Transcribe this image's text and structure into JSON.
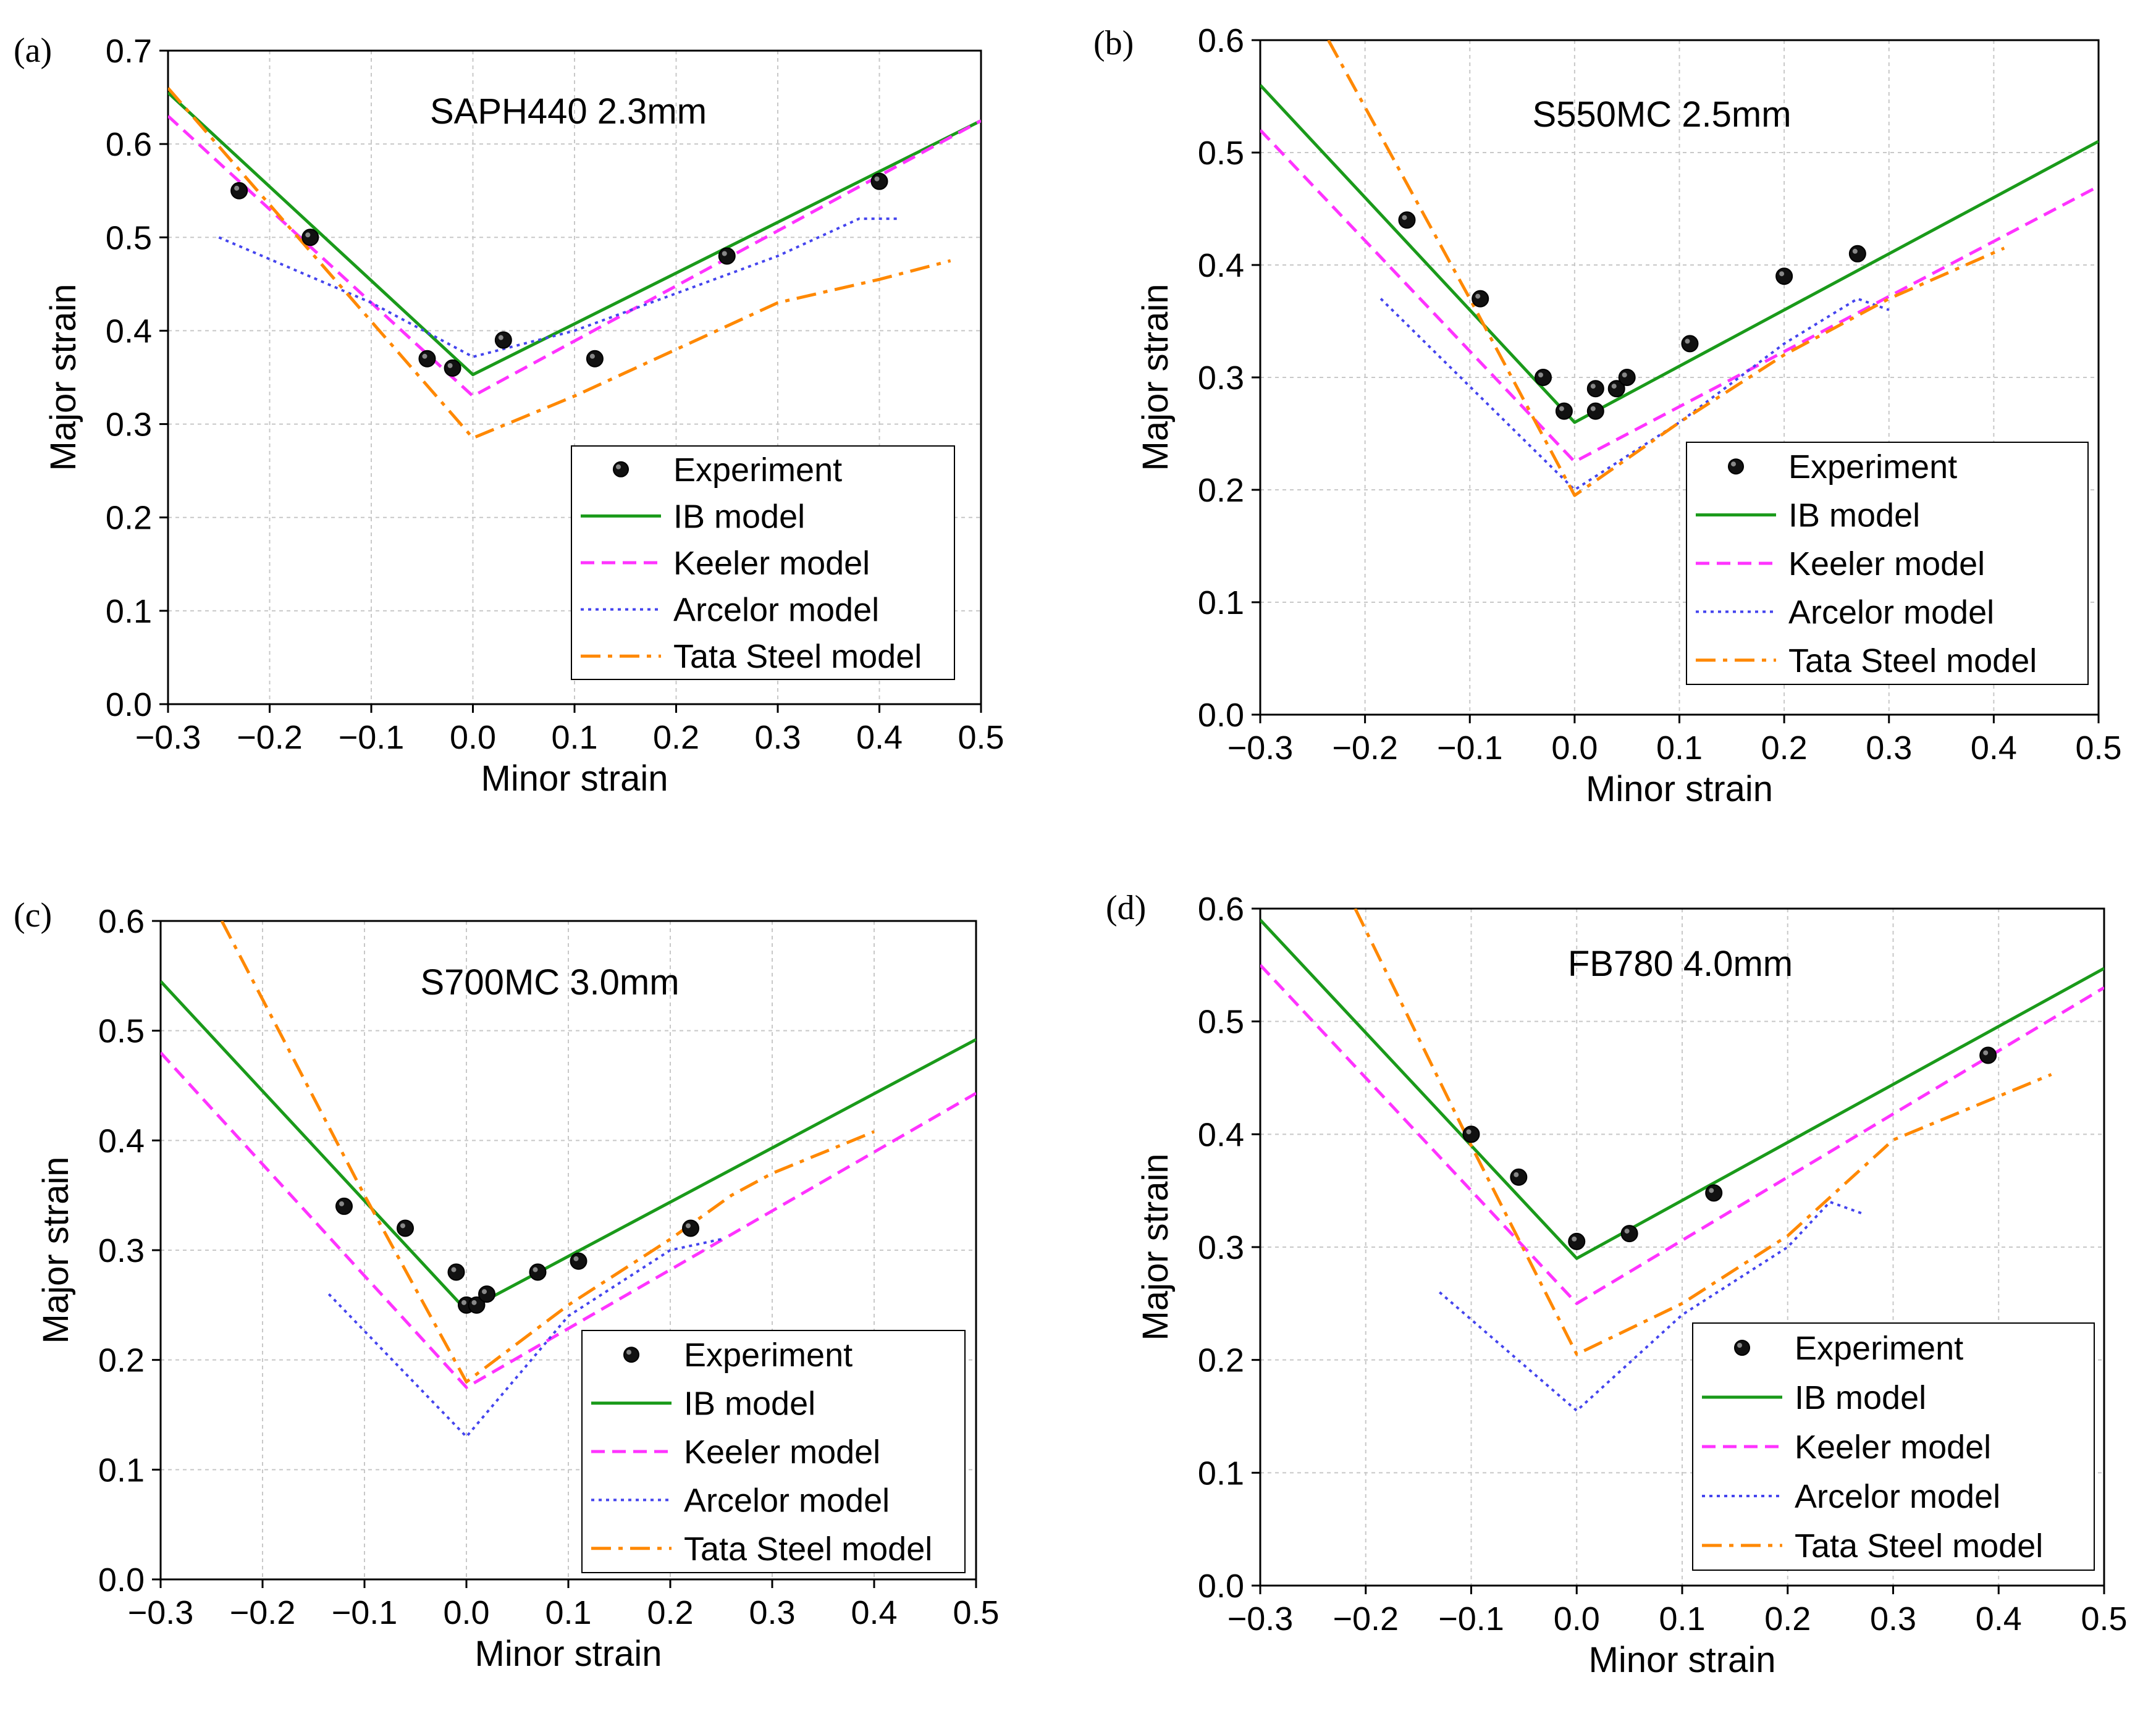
{
  "chart_data": [
    {
      "type": "line",
      "panel_label": "(a)",
      "title": "SAPH440 2.3mm",
      "xlabel": "Minor strain",
      "ylabel": "Major strain",
      "xlim": [
        -0.3,
        0.5
      ],
      "ylim": [
        0.0,
        0.7
      ],
      "xticks": [
        -0.3,
        -0.2,
        -0.1,
        0.0,
        0.1,
        0.2,
        0.3,
        0.4,
        0.5
      ],
      "xtick_labels": [
        "−0.3",
        "−0.2",
        "−0.1",
        "0.0",
        "0.1",
        "0.2",
        "0.3",
        "0.4",
        "0.5"
      ],
      "yticks": [
        0.0,
        0.1,
        0.2,
        0.3,
        0.4,
        0.5,
        0.6,
        0.7
      ],
      "ytick_labels": [
        "0.0",
        "0.1",
        "0.2",
        "0.3",
        "0.4",
        "0.5",
        "0.6",
        "0.7"
      ],
      "grid": true,
      "legend_position": "bottom-right",
      "series": [
        {
          "name": "Experiment",
          "kind": "scatter",
          "color": "#000000",
          "points": [
            [
              -0.23,
              0.55
            ],
            [
              -0.16,
              0.5
            ],
            [
              -0.045,
              0.37
            ],
            [
              -0.02,
              0.36
            ],
            [
              0.03,
              0.39
            ],
            [
              0.12,
              0.37
            ],
            [
              0.25,
              0.48
            ],
            [
              0.4,
              0.56
            ]
          ]
        },
        {
          "name": "IB model",
          "kind": "line",
          "color": "#1a9a1a",
          "dash": "solid",
          "points": [
            [
              -0.3,
              0.655
            ],
            [
              0.0,
              0.353
            ],
            [
              0.5,
              0.625
            ]
          ]
        },
        {
          "name": "Keeler model",
          "kind": "line",
          "color": "#ff33ff",
          "dash": "dashed",
          "points": [
            [
              -0.3,
              0.63
            ],
            [
              0.0,
              0.33
            ],
            [
              0.5,
              0.625
            ]
          ]
        },
        {
          "name": "Arcelor model",
          "kind": "line",
          "color": "#4444ee",
          "dash": "dotted",
          "points": [
            [
              -0.25,
              0.5
            ],
            [
              -0.1,
              0.43
            ],
            [
              0.0,
              0.372
            ],
            [
              0.1,
              0.4
            ],
            [
              0.2,
              0.44
            ],
            [
              0.3,
              0.48
            ],
            [
              0.38,
              0.52
            ],
            [
              0.42,
              0.52
            ]
          ]
        },
        {
          "name": "Tata Steel model",
          "kind": "line",
          "color": "#ff8800",
          "dash": "dashdot",
          "points": [
            [
              -0.3,
              0.66
            ],
            [
              0.0,
              0.285
            ],
            [
              0.1,
              0.33
            ],
            [
              0.2,
              0.38
            ],
            [
              0.3,
              0.43
            ],
            [
              0.4,
              0.455
            ],
            [
              0.47,
              0.475
            ]
          ]
        }
      ]
    },
    {
      "type": "line",
      "panel_label": "(b)",
      "title": "S550MC 2.5mm",
      "xlabel": "Minor strain",
      "ylabel": "Major strain",
      "xlim": [
        -0.3,
        0.5
      ],
      "ylim": [
        0.0,
        0.6
      ],
      "xticks": [
        -0.3,
        -0.2,
        -0.1,
        0.0,
        0.1,
        0.2,
        0.3,
        0.4,
        0.5
      ],
      "xtick_labels": [
        "−0.3",
        "−0.2",
        "−0.1",
        "0.0",
        "0.1",
        "0.2",
        "0.3",
        "0.4",
        "0.5"
      ],
      "yticks": [
        0.0,
        0.1,
        0.2,
        0.3,
        0.4,
        0.5,
        0.6
      ],
      "ytick_labels": [
        "0.0",
        "0.1",
        "0.2",
        "0.3",
        "0.4",
        "0.5",
        "0.6"
      ],
      "grid": true,
      "legend_position": "bottom-right",
      "series": [
        {
          "name": "Experiment",
          "kind": "scatter",
          "color": "#000000",
          "points": [
            [
              -0.16,
              0.44
            ],
            [
              -0.09,
              0.37
            ],
            [
              -0.03,
              0.3
            ],
            [
              -0.01,
              0.27
            ],
            [
              0.02,
              0.29
            ],
            [
              0.02,
              0.27
            ],
            [
              0.04,
              0.29
            ],
            [
              0.05,
              0.3
            ],
            [
              0.11,
              0.33
            ],
            [
              0.2,
              0.39
            ],
            [
              0.27,
              0.41
            ]
          ]
        },
        {
          "name": "IB model",
          "kind": "line",
          "color": "#1a9a1a",
          "dash": "solid",
          "points": [
            [
              -0.3,
              0.56
            ],
            [
              0.0,
              0.26
            ],
            [
              0.5,
              0.51
            ]
          ]
        },
        {
          "name": "Keeler model",
          "kind": "line",
          "color": "#ff33ff",
          "dash": "dashed",
          "points": [
            [
              -0.3,
              0.52
            ],
            [
              0.0,
              0.225
            ],
            [
              0.5,
              0.47
            ]
          ]
        },
        {
          "name": "Arcelor model",
          "kind": "line",
          "color": "#4444ee",
          "dash": "dotted",
          "points": [
            [
              -0.185,
              0.37
            ],
            [
              0.0,
              0.2
            ],
            [
              0.1,
              0.26
            ],
            [
              0.2,
              0.33
            ],
            [
              0.27,
              0.37
            ],
            [
              0.3,
              0.36
            ]
          ]
        },
        {
          "name": "Tata Steel model",
          "kind": "line",
          "color": "#ff8800",
          "dash": "dashdot",
          "points": [
            [
              -0.235,
              0.6
            ],
            [
              -0.1,
              0.37
            ],
            [
              0.0,
              0.195
            ],
            [
              0.1,
              0.26
            ],
            [
              0.2,
              0.32
            ],
            [
              0.3,
              0.37
            ],
            [
              0.41,
              0.415
            ]
          ]
        }
      ]
    },
    {
      "type": "line",
      "panel_label": "(c)",
      "title": "S700MC 3.0mm",
      "xlabel": "Minor strain",
      "ylabel": "Major strain",
      "xlim": [
        -0.3,
        0.5
      ],
      "ylim": [
        0.0,
        0.6
      ],
      "xticks": [
        -0.3,
        -0.2,
        -0.1,
        0.0,
        0.1,
        0.2,
        0.3,
        0.4,
        0.5
      ],
      "xtick_labels": [
        "−0.3",
        "−0.2",
        "−0.1",
        "0.0",
        "0.1",
        "0.2",
        "0.3",
        "0.4",
        "0.5"
      ],
      "yticks": [
        0.0,
        0.1,
        0.2,
        0.3,
        0.4,
        0.5,
        0.6
      ],
      "ytick_labels": [
        "0.0",
        "0.1",
        "0.2",
        "0.3",
        "0.4",
        "0.5",
        "0.6"
      ],
      "grid": true,
      "legend_position": "bottom-right",
      "series": [
        {
          "name": "Experiment",
          "kind": "scatter",
          "color": "#000000",
          "points": [
            [
              -0.12,
              0.34
            ],
            [
              -0.06,
              0.32
            ],
            [
              -0.01,
              0.28
            ],
            [
              0.0,
              0.25
            ],
            [
              0.01,
              0.25
            ],
            [
              0.02,
              0.26
            ],
            [
              0.07,
              0.28
            ],
            [
              0.11,
              0.29
            ],
            [
              0.22,
              0.32
            ]
          ]
        },
        {
          "name": "IB model",
          "kind": "line",
          "color": "#1a9a1a",
          "dash": "solid",
          "points": [
            [
              -0.3,
              0.545
            ],
            [
              0.0,
              0.245
            ],
            [
              0.5,
              0.492
            ]
          ]
        },
        {
          "name": "Keeler model",
          "kind": "line",
          "color": "#ff33ff",
          "dash": "dashed",
          "points": [
            [
              -0.3,
              0.48
            ],
            [
              0.0,
              0.175
            ],
            [
              0.5,
              0.443
            ]
          ]
        },
        {
          "name": "Arcelor model",
          "kind": "line",
          "color": "#4444ee",
          "dash": "dotted",
          "points": [
            [
              -0.135,
              0.26
            ],
            [
              0.0,
              0.13
            ],
            [
              0.1,
              0.24
            ],
            [
              0.2,
              0.3
            ],
            [
              0.25,
              0.31
            ]
          ]
        },
        {
          "name": "Tata Steel model",
          "kind": "line",
          "color": "#ff8800",
          "dash": "dashdot",
          "points": [
            [
              -0.24,
              0.6
            ],
            [
              -0.1,
              0.35
            ],
            [
              0.0,
              0.18
            ],
            [
              0.1,
              0.25
            ],
            [
              0.2,
              0.31
            ],
            [
              0.26,
              0.35
            ],
            [
              0.3,
              0.37
            ],
            [
              0.4,
              0.408
            ]
          ]
        }
      ]
    },
    {
      "type": "line",
      "panel_label": "(d)",
      "title": "FB780 4.0mm",
      "xlabel": "Minor strain",
      "ylabel": "Major strain",
      "xlim": [
        -0.3,
        0.5
      ],
      "ylim": [
        0.0,
        0.6
      ],
      "xticks": [
        -0.3,
        -0.2,
        -0.1,
        0.0,
        0.1,
        0.2,
        0.3,
        0.4,
        0.5
      ],
      "xtick_labels": [
        "−0.3",
        "−0.2",
        "−0.1",
        "0.0",
        "0.1",
        "0.2",
        "0.3",
        "0.4",
        "0.5"
      ],
      "yticks": [
        0.0,
        0.1,
        0.2,
        0.3,
        0.4,
        0.5,
        0.6
      ],
      "ytick_labels": [
        "0.0",
        "0.1",
        "0.2",
        "0.3",
        "0.4",
        "0.5",
        "0.6"
      ],
      "grid": true,
      "legend_position": "bottom-right",
      "series": [
        {
          "name": "Experiment",
          "kind": "scatter",
          "color": "#000000",
          "points": [
            [
              -0.1,
              0.4
            ],
            [
              -0.055,
              0.362
            ],
            [
              0.0,
              0.305
            ],
            [
              0.05,
              0.312
            ],
            [
              0.13,
              0.348
            ],
            [
              0.39,
              0.47
            ]
          ]
        },
        {
          "name": "IB model",
          "kind": "line",
          "color": "#1a9a1a",
          "dash": "solid",
          "points": [
            [
              -0.3,
              0.59
            ],
            [
              0.0,
              0.29
            ],
            [
              0.5,
              0.547
            ]
          ]
        },
        {
          "name": "Keeler model",
          "kind": "line",
          "color": "#ff33ff",
          "dash": "dashed",
          "points": [
            [
              -0.3,
              0.55
            ],
            [
              0.0,
              0.25
            ],
            [
              0.5,
              0.53
            ]
          ]
        },
        {
          "name": "Arcelor model",
          "kind": "line",
          "color": "#4444ee",
          "dash": "dotted",
          "points": [
            [
              -0.13,
              0.26
            ],
            [
              0.0,
              0.155
            ],
            [
              0.1,
              0.24
            ],
            [
              0.2,
              0.3
            ],
            [
              0.24,
              0.34
            ],
            [
              0.27,
              0.33
            ]
          ]
        },
        {
          "name": "Tata Steel model",
          "kind": "line",
          "color": "#ff8800",
          "dash": "dashdot",
          "points": [
            [
              -0.21,
              0.6
            ],
            [
              -0.1,
              0.39
            ],
            [
              0.0,
              0.205
            ],
            [
              0.1,
              0.25
            ],
            [
              0.2,
              0.31
            ],
            [
              0.3,
              0.395
            ],
            [
              0.45,
              0.453
            ]
          ]
        }
      ]
    }
  ]
}
